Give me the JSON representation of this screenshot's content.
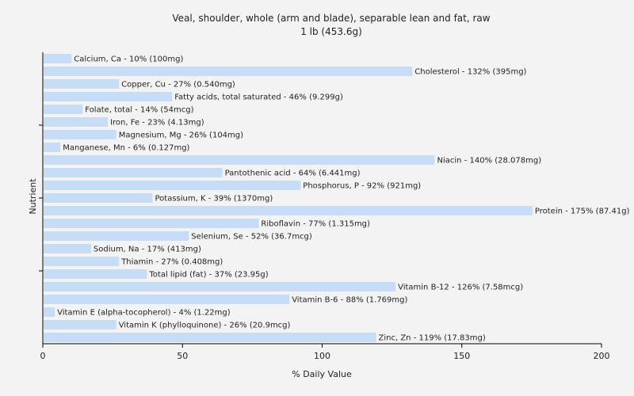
{
  "chart_data": {
    "type": "bar",
    "orientation": "horizontal",
    "title": "Veal, shoulder, whole (arm and blade), separable lean and fat, raw",
    "subtitle": "1 lb (453.6g)",
    "xlabel": "% Daily Value",
    "ylabel": "Nutrient",
    "xlim": [
      0,
      200
    ],
    "xticks": [
      0,
      50,
      100,
      150,
      200
    ],
    "grid": false,
    "bar_color": "#c6dcf7",
    "bars": [
      {
        "name": "Calcium, Ca",
        "value": 10,
        "label": "Calcium, Ca - 10% (100mg)"
      },
      {
        "name": "Cholesterol",
        "value": 132,
        "label": "Cholesterol - 132% (395mg)"
      },
      {
        "name": "Copper, Cu",
        "value": 27,
        "label": "Copper, Cu - 27% (0.540mg)"
      },
      {
        "name": "Fatty acids, total saturated",
        "value": 46,
        "label": "Fatty acids, total saturated - 46% (9.299g)"
      },
      {
        "name": "Folate, total",
        "value": 14,
        "label": "Folate, total - 14% (54mcg)"
      },
      {
        "name": "Iron, Fe",
        "value": 23,
        "label": "Iron, Fe - 23% (4.13mg)"
      },
      {
        "name": "Magnesium, Mg",
        "value": 26,
        "label": "Magnesium, Mg - 26% (104mg)"
      },
      {
        "name": "Manganese, Mn",
        "value": 6,
        "label": "Manganese, Mn - 6% (0.127mg)"
      },
      {
        "name": "Niacin",
        "value": 140,
        "label": "Niacin - 140% (28.078mg)"
      },
      {
        "name": "Pantothenic acid",
        "value": 64,
        "label": "Pantothenic acid - 64% (6.441mg)"
      },
      {
        "name": "Phosphorus, P",
        "value": 92,
        "label": "Phosphorus, P - 92% (921mg)"
      },
      {
        "name": "Potassium, K",
        "value": 39,
        "label": "Potassium, K - 39% (1370mg)"
      },
      {
        "name": "Protein",
        "value": 175,
        "label": "Protein - 175% (87.41g)"
      },
      {
        "name": "Riboflavin",
        "value": 77,
        "label": "Riboflavin - 77% (1.315mg)"
      },
      {
        "name": "Selenium, Se",
        "value": 52,
        "label": "Selenium, Se - 52% (36.7mcg)"
      },
      {
        "name": "Sodium, Na",
        "value": 17,
        "label": "Sodium, Na - 17% (413mg)"
      },
      {
        "name": "Thiamin",
        "value": 27,
        "label": "Thiamin - 27% (0.408mg)"
      },
      {
        "name": "Total lipid (fat)",
        "value": 37,
        "label": "Total lipid (fat) - 37% (23.95g)"
      },
      {
        "name": "Vitamin B-12",
        "value": 126,
        "label": "Vitamin B-12 - 126% (7.58mcg)"
      },
      {
        "name": "Vitamin B-6",
        "value": 88,
        "label": "Vitamin B-6 - 88% (1.769mg)"
      },
      {
        "name": "Vitamin E (alpha-tocopherol)",
        "value": 4,
        "label": "Vitamin E (alpha-tocopherol) - 4% (1.22mg)"
      },
      {
        "name": "Vitamin K (phylloquinone)",
        "value": 26,
        "label": "Vitamin K (phylloquinone) - 26% (20.9mcg)"
      },
      {
        "name": "Zinc, Zn",
        "value": 119,
        "label": "Zinc, Zn - 119% (17.83mg)"
      }
    ]
  }
}
